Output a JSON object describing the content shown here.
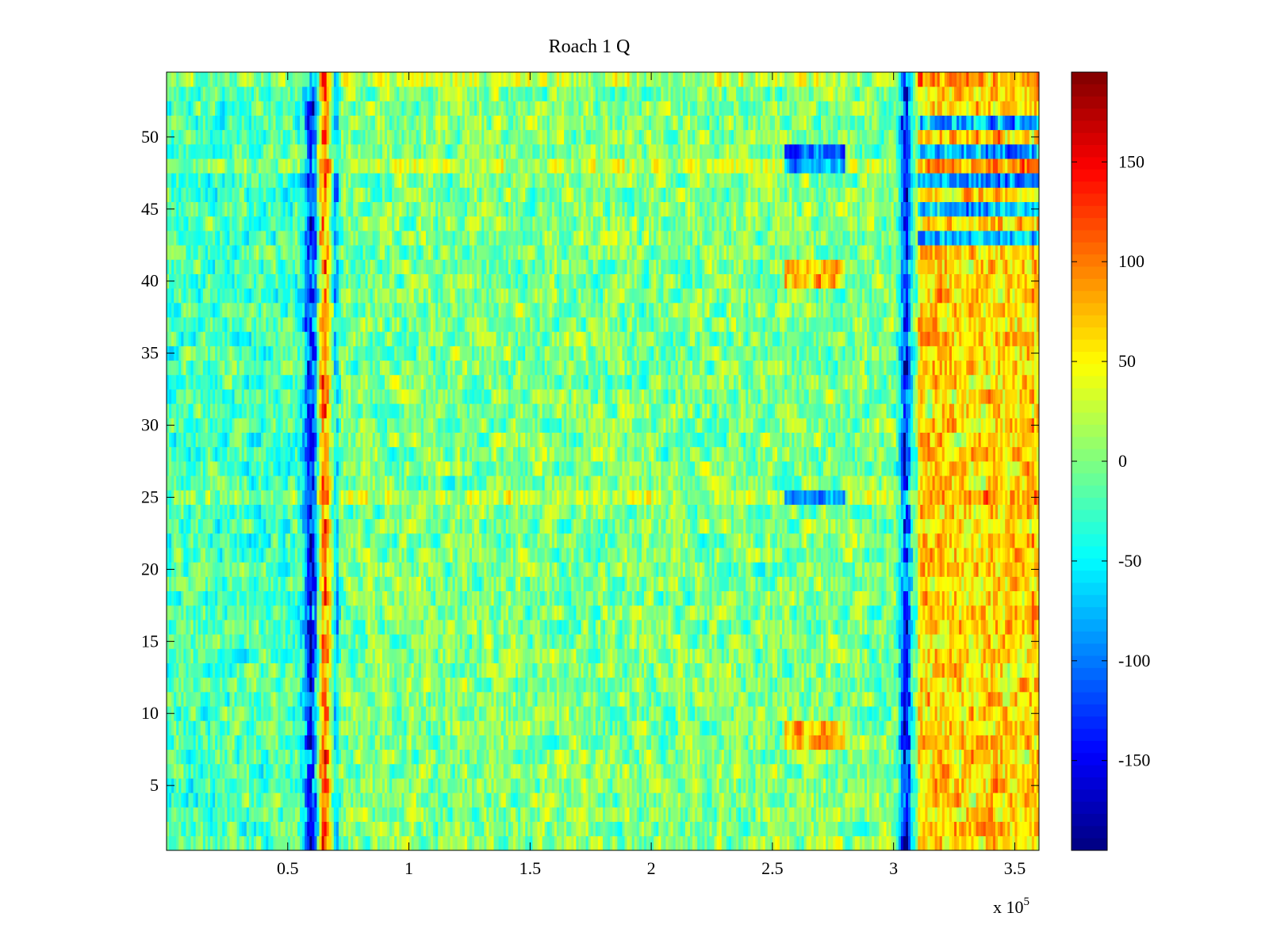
{
  "chart_data": {
    "type": "heatmap",
    "title": "Roach 1 Q",
    "xlabel": "",
    "ylabel": "",
    "x_exponent_label": {
      "base": "x 10",
      "exponent": "5"
    },
    "x_range": [
      0,
      360000
    ],
    "y_range": [
      0.5,
      54.5
    ],
    "num_rows": 54,
    "x_ticks": [
      {
        "value": 50000,
        "label": "0.5"
      },
      {
        "value": 100000,
        "label": "1"
      },
      {
        "value": 150000,
        "label": "1.5"
      },
      {
        "value": 200000,
        "label": "2"
      },
      {
        "value": 250000,
        "label": "2.5"
      },
      {
        "value": 300000,
        "label": "3"
      },
      {
        "value": 350000,
        "label": "3.5"
      }
    ],
    "y_ticks": [
      {
        "value": 5,
        "label": "5"
      },
      {
        "value": 10,
        "label": "10"
      },
      {
        "value": 15,
        "label": "15"
      },
      {
        "value": 20,
        "label": "20"
      },
      {
        "value": 25,
        "label": "25"
      },
      {
        "value": 30,
        "label": "30"
      },
      {
        "value": 35,
        "label": "35"
      },
      {
        "value": 40,
        "label": "40"
      },
      {
        "value": 45,
        "label": "45"
      },
      {
        "value": 50,
        "label": "50"
      }
    ],
    "colorbar": {
      "colormap": "jet",
      "clim": [
        -195,
        195
      ],
      "ticks": [
        {
          "value": 150,
          "label": "150"
        },
        {
          "value": 100,
          "label": "100"
        },
        {
          "value": 50,
          "label": "50"
        },
        {
          "value": 0,
          "label": "0"
        },
        {
          "value": -50,
          "label": "-50"
        },
        {
          "value": -100,
          "label": "-100"
        },
        {
          "value": -150,
          "label": "-150"
        }
      ]
    },
    "grid": false,
    "legend": "none",
    "features": [
      {
        "note": "vertical disturbance",
        "x_center": 60000,
        "x_width": 3000,
        "value": -150
      },
      {
        "note": "vertical disturbance",
        "x_center": 65000,
        "x_width": 2500,
        "value": 130
      },
      {
        "note": "vertical disturbance",
        "x_center": 70000,
        "x_width": 1500,
        "value": -80
      },
      {
        "note": "vertical disturbance",
        "x_center": 305000,
        "x_width": 2500,
        "value": -150
      }
    ]
  }
}
